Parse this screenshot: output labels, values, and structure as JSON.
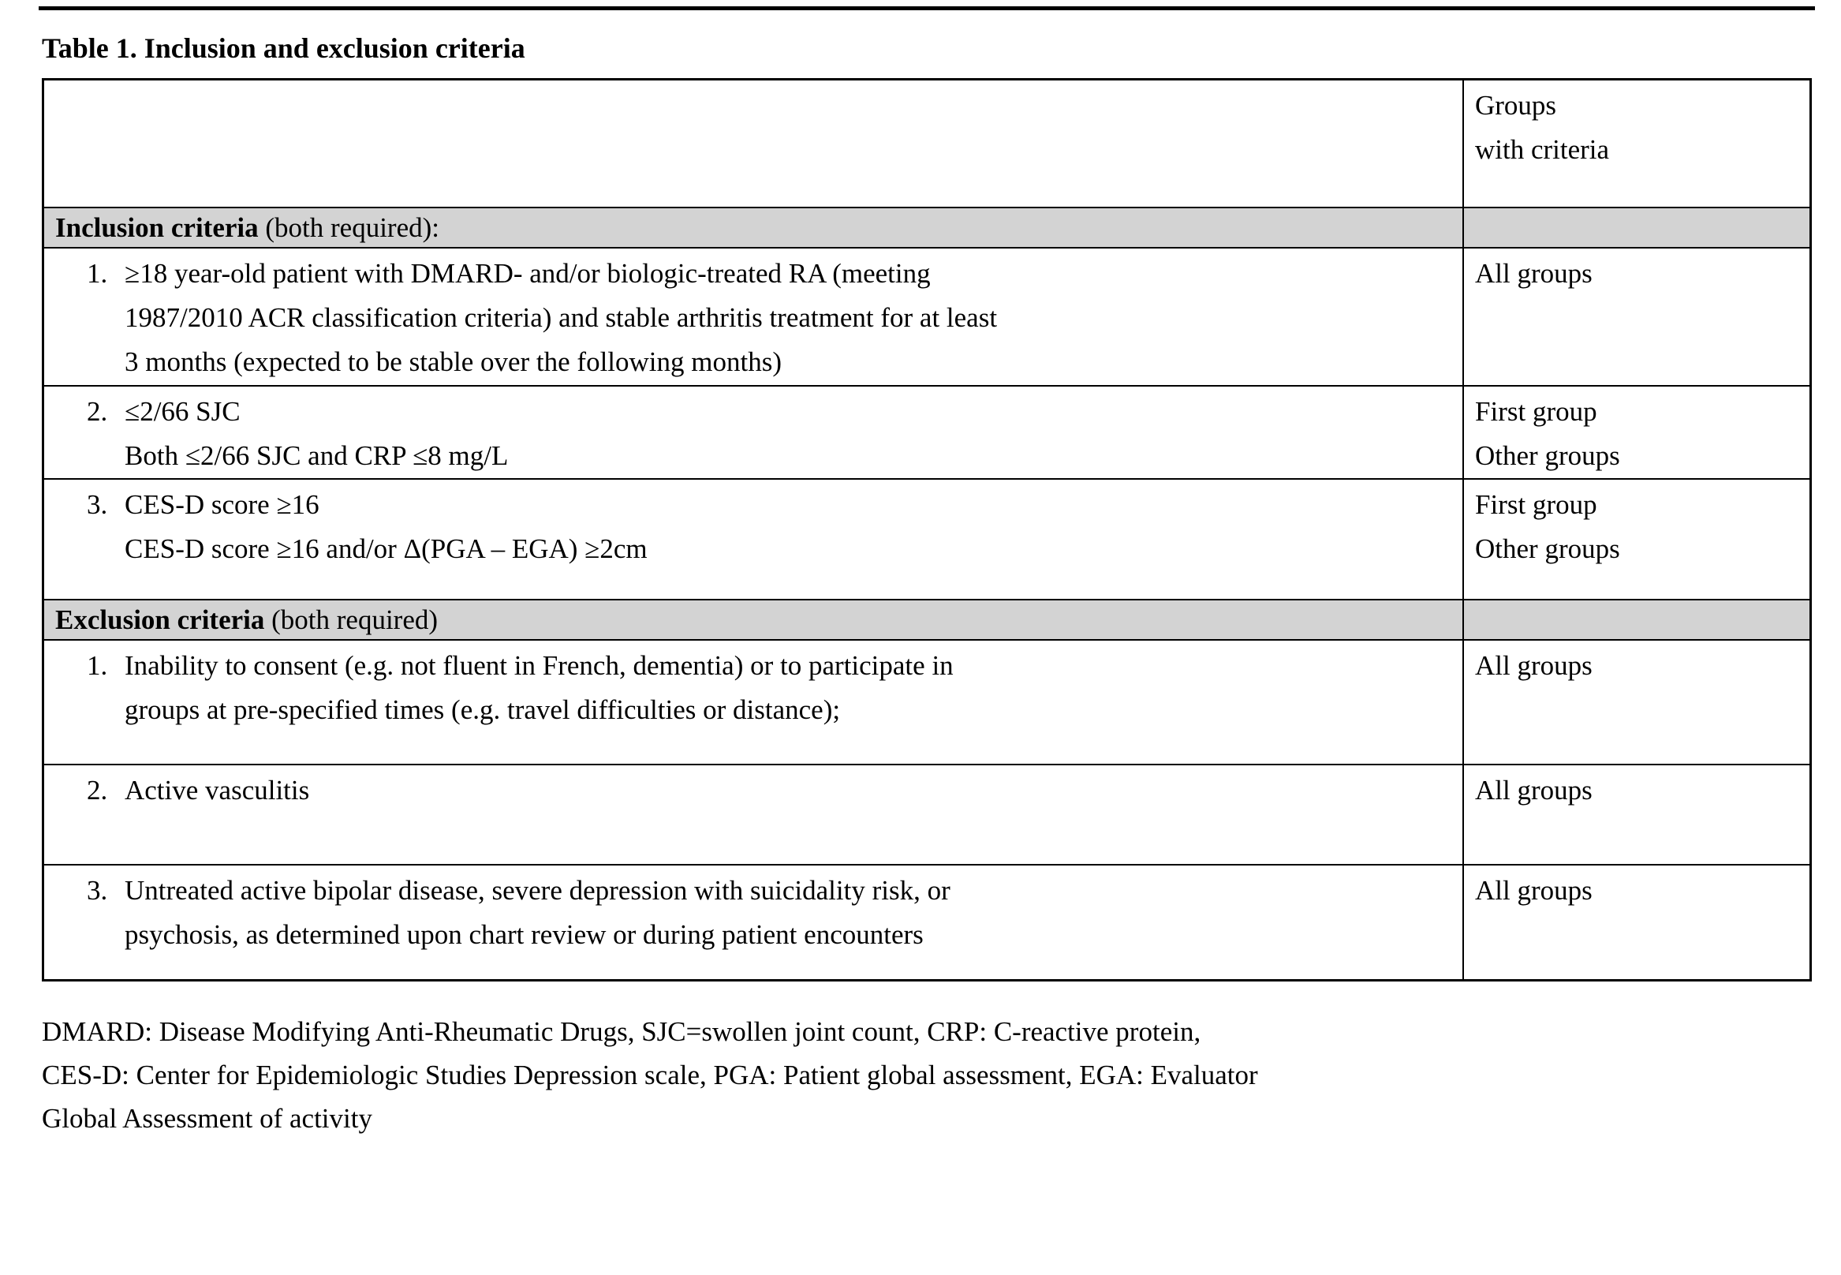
{
  "page": {
    "title": "Table 1. Inclusion and exclusion criteria"
  },
  "table": {
    "header": {
      "groups_lines": [
        "Groups",
        "with criteria"
      ]
    },
    "inclusion": {
      "heading_bold": "Inclusion criteria",
      "heading_rest": " (both required):",
      "rows": [
        {
          "number": "1.",
          "lines": [
            "≥18 year-old patient with DMARD- and/or biologic-treated RA (meeting",
            "1987/2010 ACR classification criteria) and stable arthritis treatment for at least",
            "3 months (expected to be stable over the following months)"
          ],
          "groups": [
            "All groups"
          ]
        },
        {
          "number": "2.",
          "lines": [
            "≤2/66 SJC",
            "Both ≤2/66 SJC and CRP ≤8 mg/L"
          ],
          "groups": [
            "First group",
            "Other groups"
          ]
        },
        {
          "number": "3.",
          "lines": [
            "CES-D score ≥16",
            "CES-D score ≥16 and/or Δ(PGA – EGA) ≥2cm"
          ],
          "groups": [
            "First group",
            "Other groups"
          ]
        }
      ]
    },
    "exclusion": {
      "heading_bold": "Exclusion criteria",
      "heading_rest": " (both required)",
      "rows": [
        {
          "number": "1.",
          "lines": [
            "Inability to consent (e.g. not fluent in French, dementia) or to participate in",
            "groups at pre-specified times (e.g. travel difficulties or distance);"
          ],
          "groups": [
            "All groups"
          ]
        },
        {
          "number": "2.",
          "lines": [
            "Active vasculitis"
          ],
          "groups": [
            "All groups"
          ]
        },
        {
          "number": "3.",
          "lines": [
            "Untreated active bipolar disease, severe depression with suicidality risk, or",
            "psychosis, as determined upon chart review or during patient encounters"
          ],
          "groups": [
            "All groups"
          ]
        }
      ]
    }
  },
  "footnote": {
    "lines": [
      "DMARD: Disease Modifying Anti-Rheumatic Drugs, SJC=swollen joint count, CRP: C-reactive protein,",
      "CES-D: Center for Epidemiologic Studies Depression scale, PGA: Patient global assessment, EGA: Evaluator",
      "Global Assessment of activity"
    ]
  },
  "colors": {
    "section_bg": "#d3d3d3",
    "border": "#000000"
  }
}
